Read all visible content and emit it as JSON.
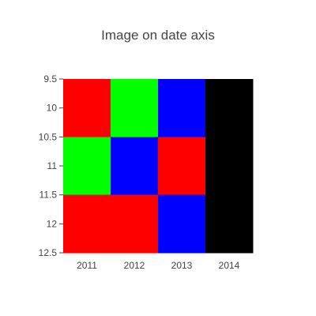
{
  "chart_data": {
    "type": "heatmap",
    "title": "Image on date axis",
    "xlabel": "",
    "ylabel": "",
    "x_categories": [
      "2011",
      "2012",
      "2013",
      "2014"
    ],
    "y_tick_labels": [
      "9.5",
      "10",
      "10.5",
      "11",
      "11.5",
      "12",
      "12.5"
    ],
    "y_ticks": [
      9.5,
      10,
      10.5,
      11,
      11.5,
      12,
      12.5
    ],
    "ylim": [
      12.5,
      9.5
    ],
    "y_reversed": true,
    "y_centers": [
      10,
      11,
      12
    ],
    "pixels": [
      [
        "#ff0000",
        "#00ff00",
        "#0000ff",
        "#000000"
      ],
      [
        "#00ff00",
        "#0000ff",
        "#ff0000",
        "#000000"
      ],
      [
        "#ff0000",
        "#ff0000",
        "#0000ff",
        "#000000"
      ]
    ],
    "grid": false,
    "legend": "none"
  },
  "colors": {
    "text": "#444444",
    "axis_tick": "#444444",
    "background": "#ffffff"
  }
}
